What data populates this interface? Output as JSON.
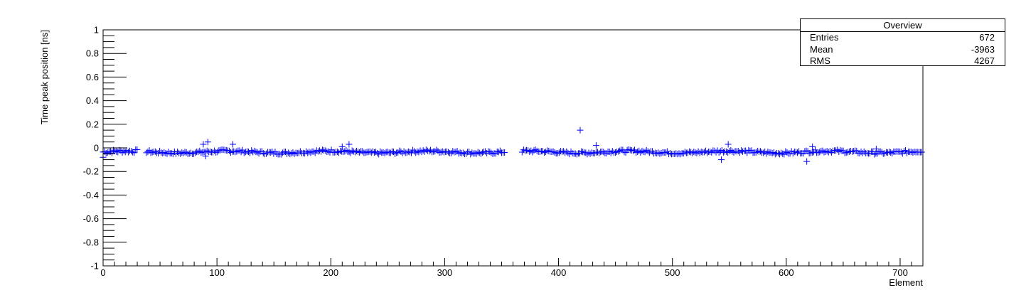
{
  "chart_data": {
    "type": "scatter",
    "title": "",
    "xlabel": "Element",
    "ylabel": "Time peak position [ns]",
    "xlim": [
      0,
      720
    ],
    "ylim": [
      -1,
      1
    ],
    "x_ticks": [
      "0",
      "100",
      "200",
      "300",
      "400",
      "500",
      "600",
      "700"
    ],
    "y_ticks": [
      "-1",
      "-0.8",
      "-0.6",
      "-0.4",
      "-0.2",
      "0",
      "0.2",
      "0.4",
      "0.6",
      "0.8",
      "1"
    ],
    "marker": "cross",
    "marker_color": "#0000ff",
    "grid": false,
    "legend": "none",
    "series": [
      {
        "segments": [
          {
            "x_start": 0,
            "x_end": 30,
            "y_mean": -0.035,
            "y_spread": 0.03
          },
          {
            "x_start": 38,
            "x_end": 353,
            "y_mean": -0.035,
            "y_spread": 0.025
          },
          {
            "x_start": 368,
            "x_end": 720,
            "y_mean": -0.035,
            "y_spread": 0.025
          }
        ],
        "outliers": [
          {
            "x": 0,
            "y": -0.08
          },
          {
            "x": 88,
            "y": 0.03
          },
          {
            "x": 92,
            "y": 0.05
          },
          {
            "x": 90,
            "y": -0.07
          },
          {
            "x": 114,
            "y": 0.03
          },
          {
            "x": 210,
            "y": 0.01
          },
          {
            "x": 216,
            "y": 0.03
          },
          {
            "x": 419,
            "y": 0.15
          },
          {
            "x": 433,
            "y": 0.02
          },
          {
            "x": 543,
            "y": -0.1
          },
          {
            "x": 549,
            "y": 0.03
          },
          {
            "x": 618,
            "y": -0.115
          },
          {
            "x": 623,
            "y": 0.01
          },
          {
            "x": 679,
            "y": -0.01
          }
        ]
      }
    ]
  },
  "stats": {
    "title": "Overview",
    "rows": [
      {
        "label": "Entries",
        "value": "672"
      },
      {
        "label": "Mean",
        "value": "-3963"
      },
      {
        "label": "RMS",
        "value": "4267"
      }
    ]
  }
}
